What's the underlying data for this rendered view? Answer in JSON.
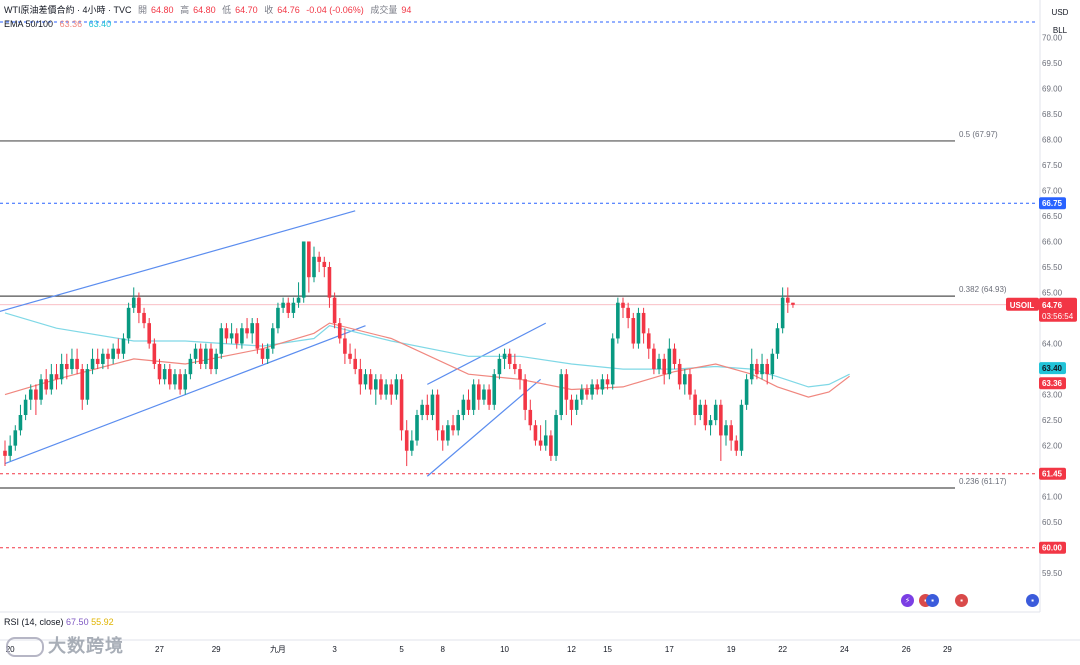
{
  "header": {
    "symbol": "WTI原油差價合約 · 4小時 · TVC",
    "open_label": "開",
    "open": "64.80",
    "high_label": "高",
    "high": "64.80",
    "low_label": "低",
    "low": "64.70",
    "close_label": "收",
    "close": "64.76",
    "change": "-0.04 (-0.06%)",
    "volume_label": "成交量",
    "volume": "94",
    "ema_label": "EMA 50/100",
    "ema50": "63.36",
    "ema100": "63.40"
  },
  "currency": {
    "line1": "USD",
    "line2": "BLL"
  },
  "rsi": {
    "label": "RSI (14, close)",
    "value1": "67.50",
    "value2": "55.92"
  },
  "watermark": {
    "text": "大数跨境"
  },
  "colors": {
    "up": "#089981",
    "down": "#f23645",
    "ema50": "#f0877f",
    "ema100": "#7fd8e6",
    "channel": "#5b8def",
    "fib": "#505050",
    "dashed_blue": "#2962ff",
    "dashed_red": "#f23645",
    "price_tag": "#f23645",
    "blue_tag": "#2962ff",
    "cyan_tag": "#22c3d8"
  },
  "chart_data": {
    "type": "candlestick",
    "symbol": "USOIL",
    "ylim": [
      59.25,
      70.3
    ],
    "y_ticks": [
      59.5,
      60.0,
      60.5,
      61.0,
      61.5,
      62.0,
      62.5,
      63.0,
      63.5,
      64.0,
      64.5,
      65.0,
      65.5,
      66.0,
      66.5,
      67.0,
      67.5,
      68.0,
      68.5,
      69.0,
      69.5,
      70.0
    ],
    "x_ticks": [
      {
        "label": "20",
        "bar": 1
      },
      {
        "label": "27",
        "bar": 30
      },
      {
        "label": "29",
        "bar": 41
      },
      {
        "label": "九月",
        "bar": 53
      },
      {
        "label": "3",
        "bar": 64
      },
      {
        "label": "5",
        "bar": 77
      },
      {
        "label": "8",
        "bar": 85
      },
      {
        "label": "10",
        "bar": 97
      },
      {
        "label": "12",
        "bar": 110
      },
      {
        "label": "15",
        "bar": 117
      },
      {
        "label": "17",
        "bar": 129
      },
      {
        "label": "19",
        "bar": 141
      },
      {
        "label": "22",
        "bar": 151
      },
      {
        "label": "24",
        "bar": 163
      },
      {
        "label": "26",
        "bar": 175
      },
      {
        "label": "29",
        "bar": 183
      }
    ],
    "candles": [
      [
        61.9,
        61.8,
        62.1,
        61.6
      ],
      [
        61.8,
        62.0,
        62.2,
        61.7
      ],
      [
        62.0,
        62.3,
        62.4,
        61.9
      ],
      [
        62.3,
        62.6,
        62.8,
        62.2
      ],
      [
        62.6,
        62.9,
        63.0,
        62.5
      ],
      [
        62.9,
        63.1,
        63.2,
        62.7
      ],
      [
        63.1,
        62.9,
        63.2,
        62.6
      ],
      [
        62.9,
        63.3,
        63.4,
        62.8
      ],
      [
        63.3,
        63.1,
        63.5,
        63.0
      ],
      [
        63.1,
        63.4,
        63.6,
        63.0
      ],
      [
        63.4,
        63.3,
        63.6,
        63.1
      ],
      [
        63.3,
        63.6,
        63.8,
        63.2
      ],
      [
        63.6,
        63.5,
        63.8,
        63.3
      ],
      [
        63.5,
        63.7,
        63.9,
        63.4
      ],
      [
        63.7,
        63.5,
        63.9,
        63.4
      ],
      [
        63.5,
        62.9,
        63.6,
        62.7
      ],
      [
        62.9,
        63.5,
        63.6,
        62.8
      ],
      [
        63.5,
        63.7,
        63.9,
        63.4
      ],
      [
        63.7,
        63.6,
        63.9,
        63.5
      ],
      [
        63.6,
        63.8,
        63.9,
        63.5
      ],
      [
        63.8,
        63.7,
        63.9,
        63.5
      ],
      [
        63.7,
        63.9,
        64.0,
        63.6
      ],
      [
        63.9,
        63.8,
        64.1,
        63.7
      ],
      [
        63.8,
        64.1,
        64.2,
        63.7
      ],
      [
        64.1,
        64.7,
        64.8,
        64.0
      ],
      [
        64.7,
        64.9,
        65.1,
        64.6
      ],
      [
        64.9,
        64.6,
        65.0,
        64.4
      ],
      [
        64.6,
        64.4,
        64.7,
        64.3
      ],
      [
        64.4,
        64.0,
        64.5,
        63.9
      ],
      [
        64.0,
        63.6,
        64.1,
        63.5
      ],
      [
        63.6,
        63.3,
        63.7,
        63.2
      ],
      [
        63.3,
        63.5,
        63.6,
        63.2
      ],
      [
        63.5,
        63.2,
        63.6,
        63.1
      ],
      [
        63.2,
        63.4,
        63.5,
        63.1
      ],
      [
        63.4,
        63.1,
        63.5,
        63.0
      ],
      [
        63.1,
        63.4,
        63.5,
        63.0
      ],
      [
        63.4,
        63.7,
        63.8,
        63.3
      ],
      [
        63.7,
        63.9,
        64.0,
        63.6
      ],
      [
        63.9,
        63.6,
        64.0,
        63.5
      ],
      [
        63.6,
        63.9,
        64.0,
        63.5
      ],
      [
        63.9,
        63.5,
        64.0,
        63.4
      ],
      [
        63.5,
        63.8,
        63.9,
        63.4
      ],
      [
        63.8,
        64.3,
        64.4,
        63.7
      ],
      [
        64.3,
        64.1,
        64.4,
        64.0
      ],
      [
        64.1,
        64.2,
        64.4,
        64.0
      ],
      [
        64.2,
        64.0,
        64.3,
        63.9
      ],
      [
        64.0,
        64.3,
        64.4,
        63.9
      ],
      [
        64.3,
        64.2,
        64.5,
        64.1
      ],
      [
        64.2,
        64.4,
        64.5,
        64.0
      ],
      [
        64.4,
        63.9,
        64.5,
        63.8
      ],
      [
        63.9,
        63.7,
        64.0,
        63.6
      ],
      [
        63.7,
        63.9,
        64.0,
        63.6
      ],
      [
        63.9,
        64.3,
        64.4,
        63.8
      ],
      [
        64.3,
        64.7,
        64.8,
        64.2
      ],
      [
        64.7,
        64.8,
        64.9,
        64.6
      ],
      [
        64.8,
        64.6,
        64.9,
        64.5
      ],
      [
        64.6,
        64.8,
        64.9,
        64.5
      ],
      [
        64.8,
        64.9,
        65.2,
        64.7
      ],
      [
        64.9,
        66.0,
        66.0,
        64.8
      ],
      [
        66.0,
        65.3,
        66.0,
        65.0
      ],
      [
        65.3,
        65.7,
        65.9,
        65.2
      ],
      [
        65.7,
        65.6,
        65.8,
        65.4
      ],
      [
        65.6,
        65.5,
        65.7,
        65.3
      ],
      [
        65.5,
        64.9,
        65.6,
        64.7
      ],
      [
        64.9,
        64.4,
        65.0,
        64.3
      ],
      [
        64.4,
        64.1,
        64.5,
        64.0
      ],
      [
        64.1,
        63.8,
        64.3,
        63.6
      ],
      [
        63.8,
        63.7,
        64.0,
        63.6
      ],
      [
        63.7,
        63.5,
        63.9,
        63.4
      ],
      [
        63.5,
        63.2,
        63.7,
        63.0
      ],
      [
        63.2,
        63.4,
        63.5,
        63.1
      ],
      [
        63.4,
        63.1,
        63.5,
        63.0
      ],
      [
        63.1,
        63.3,
        63.4,
        62.8
      ],
      [
        63.3,
        63.0,
        63.4,
        62.9
      ],
      [
        63.0,
        63.2,
        63.3,
        62.9
      ],
      [
        63.2,
        63.0,
        63.3,
        62.8
      ],
      [
        63.0,
        63.3,
        63.4,
        62.9
      ],
      [
        63.3,
        62.3,
        63.4,
        62.1
      ],
      [
        62.3,
        61.9,
        62.5,
        61.6
      ],
      [
        61.9,
        62.1,
        62.3,
        61.8
      ],
      [
        62.1,
        62.6,
        62.7,
        62.0
      ],
      [
        62.6,
        62.8,
        62.9,
        62.5
      ],
      [
        62.8,
        62.6,
        63.0,
        62.5
      ],
      [
        62.6,
        63.0,
        63.1,
        62.5
      ],
      [
        63.0,
        62.3,
        63.1,
        62.1
      ],
      [
        62.3,
        62.1,
        62.4,
        61.9
      ],
      [
        62.1,
        62.4,
        62.5,
        62.0
      ],
      [
        62.4,
        62.3,
        62.6,
        62.2
      ],
      [
        62.3,
        62.6,
        62.7,
        62.2
      ],
      [
        62.6,
        62.9,
        63.0,
        62.5
      ],
      [
        62.9,
        62.7,
        63.1,
        62.6
      ],
      [
        62.7,
        63.2,
        63.3,
        62.6
      ],
      [
        63.2,
        62.9,
        63.3,
        62.7
      ],
      [
        62.9,
        63.1,
        63.2,
        62.8
      ],
      [
        63.1,
        62.8,
        63.2,
        62.7
      ],
      [
        62.8,
        63.4,
        63.5,
        62.7
      ],
      [
        63.4,
        63.7,
        63.8,
        63.3
      ],
      [
        63.7,
        63.8,
        63.9,
        63.5
      ],
      [
        63.8,
        63.6,
        63.9,
        63.5
      ],
      [
        63.6,
        63.5,
        63.8,
        63.4
      ],
      [
        63.5,
        63.3,
        63.6,
        63.1
      ],
      [
        63.3,
        62.7,
        63.4,
        62.5
      ],
      [
        62.7,
        62.4,
        62.9,
        62.3
      ],
      [
        62.4,
        62.1,
        62.5,
        62.0
      ],
      [
        62.1,
        62.0,
        62.4,
        61.9
      ],
      [
        62.0,
        62.2,
        62.5,
        61.9
      ],
      [
        62.2,
        61.8,
        62.3,
        61.7
      ],
      [
        61.8,
        62.6,
        62.7,
        61.7
      ],
      [
        62.6,
        63.4,
        63.5,
        62.5
      ],
      [
        63.4,
        62.9,
        63.5,
        62.6
      ],
      [
        62.9,
        62.7,
        63.0,
        62.4
      ],
      [
        62.7,
        62.9,
        63.0,
        62.6
      ],
      [
        62.9,
        63.1,
        63.2,
        62.8
      ],
      [
        63.1,
        63.0,
        63.2,
        62.9
      ],
      [
        63.0,
        63.2,
        63.3,
        62.9
      ],
      [
        63.2,
        63.1,
        63.3,
        63.0
      ],
      [
        63.1,
        63.3,
        63.4,
        63.0
      ],
      [
        63.3,
        63.2,
        63.4,
        63.1
      ],
      [
        63.2,
        64.1,
        64.2,
        63.1
      ],
      [
        64.1,
        64.8,
        64.9,
        64.0
      ],
      [
        64.8,
        64.7,
        64.9,
        64.5
      ],
      [
        64.7,
        64.5,
        64.8,
        64.3
      ],
      [
        64.5,
        64.0,
        64.6,
        63.9
      ],
      [
        64.0,
        64.6,
        64.7,
        63.9
      ],
      [
        64.6,
        64.2,
        64.7,
        64.0
      ],
      [
        64.2,
        63.9,
        64.3,
        63.7
      ],
      [
        63.9,
        63.5,
        64.0,
        63.4
      ],
      [
        63.5,
        63.7,
        63.8,
        63.4
      ],
      [
        63.7,
        63.4,
        63.8,
        63.2
      ],
      [
        63.4,
        63.9,
        64.1,
        63.3
      ],
      [
        63.9,
        63.6,
        64.0,
        63.5
      ],
      [
        63.6,
        63.2,
        63.7,
        63.1
      ],
      [
        63.2,
        63.4,
        63.5,
        63.0
      ],
      [
        63.4,
        63.0,
        63.5,
        62.9
      ],
      [
        63.0,
        62.6,
        63.1,
        62.4
      ],
      [
        62.6,
        62.8,
        62.9,
        62.5
      ],
      [
        62.8,
        62.4,
        62.9,
        62.3
      ],
      [
        62.4,
        62.5,
        62.6,
        62.2
      ],
      [
        62.5,
        62.8,
        62.9,
        62.4
      ],
      [
        62.8,
        62.2,
        62.9,
        61.7
      ],
      [
        62.2,
        62.4,
        62.5,
        62.0
      ],
      [
        62.4,
        62.1,
        62.5,
        61.9
      ],
      [
        62.1,
        61.9,
        62.2,
        61.8
      ],
      [
        61.9,
        62.8,
        62.9,
        61.8
      ],
      [
        62.8,
        63.3,
        63.4,
        62.7
      ],
      [
        63.3,
        63.6,
        63.9,
        63.2
      ],
      [
        63.6,
        63.4,
        63.7,
        63.3
      ],
      [
        63.4,
        63.6,
        63.8,
        63.3
      ],
      [
        63.6,
        63.4,
        63.7,
        63.2
      ],
      [
        63.4,
        63.8,
        63.9,
        63.3
      ],
      [
        63.8,
        64.3,
        64.4,
        63.7
      ],
      [
        64.3,
        64.9,
        65.1,
        64.2
      ],
      [
        64.9,
        64.8,
        65.1,
        64.6
      ],
      [
        64.8,
        64.76,
        64.8,
        64.7
      ]
    ],
    "ema50": [
      [
        0,
        63.0
      ],
      [
        10,
        63.3
      ],
      [
        25,
        63.7
      ],
      [
        35,
        63.6
      ],
      [
        50,
        63.9
      ],
      [
        60,
        64.2
      ],
      [
        63,
        64.4
      ],
      [
        75,
        64.1
      ],
      [
        90,
        63.4
      ],
      [
        100,
        63.3
      ],
      [
        110,
        63.1
      ],
      [
        120,
        63.15
      ],
      [
        130,
        63.45
      ],
      [
        138,
        63.6
      ],
      [
        145,
        63.4
      ],
      [
        150,
        63.15
      ],
      [
        156,
        62.95
      ],
      [
        160,
        63.05
      ],
      [
        164,
        63.36
      ]
    ],
    "ema100": [
      [
        0,
        64.6
      ],
      [
        10,
        64.3
      ],
      [
        25,
        64.05
      ],
      [
        35,
        64.05
      ],
      [
        50,
        63.95
      ],
      [
        60,
        64.1
      ],
      [
        63,
        64.35
      ],
      [
        75,
        64.05
      ],
      [
        90,
        63.75
      ],
      [
        100,
        63.75
      ],
      [
        110,
        63.6
      ],
      [
        120,
        63.5
      ],
      [
        130,
        63.5
      ],
      [
        138,
        63.55
      ],
      [
        145,
        63.5
      ],
      [
        150,
        63.35
      ],
      [
        156,
        63.15
      ],
      [
        160,
        63.2
      ],
      [
        164,
        63.4
      ]
    ],
    "channels": [
      {
        "name": "upper-channel-a",
        "from": [
          -2,
          64.6
        ],
        "to": [
          68,
          66.6
        ]
      },
      {
        "name": "lower-channel-a",
        "from": [
          0,
          61.65
        ],
        "to": [
          70,
          64.35
        ]
      },
      {
        "name": "upper-channel-b",
        "from": [
          82,
          63.2
        ],
        "to": [
          105,
          64.4
        ]
      },
      {
        "name": "lower-channel-b",
        "from": [
          82,
          61.4
        ],
        "to": [
          104,
          63.3
        ]
      }
    ],
    "horizontal_levels": [
      {
        "name": "fib-0.5-line",
        "value": 67.97,
        "style": "solid",
        "label": "0.5 (67.97)"
      },
      {
        "name": "resistance-66.75-line",
        "value": 66.75,
        "style": "dashed-blue",
        "tag": "66.75"
      },
      {
        "name": "fib-0.382-line",
        "value": 64.93,
        "style": "solid",
        "label": "0.382 (64.93)"
      },
      {
        "name": "support-61.45-line",
        "value": 61.45,
        "style": "dashed-red",
        "tag": "61.45"
      },
      {
        "name": "fib-0.236-line",
        "value": 61.17,
        "style": "solid",
        "label": "0.236 (61.17)"
      },
      {
        "name": "support-60.00-line",
        "value": 60.0,
        "style": "dashed-red",
        "tag": "60.00"
      },
      {
        "name": "top-dashed-line",
        "value": 70.3,
        "style": "dashed-blue"
      }
    ],
    "last_price": {
      "symbol": "USOIL",
      "price": "64.76",
      "countdown": "03:56:54"
    },
    "ema_tags": {
      "ema100": "63.40",
      "ema50": "63.36"
    }
  }
}
